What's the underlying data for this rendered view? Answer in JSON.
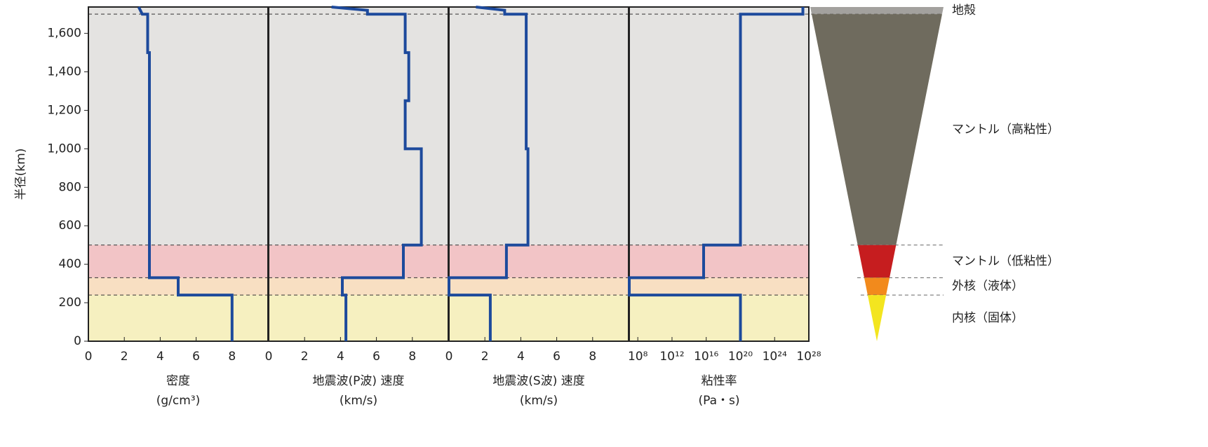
{
  "chart_data": [
    {
      "type": "line",
      "xlabel": [
        "密度",
        "(g/cm³)"
      ],
      "ylabel": "半径(km)",
      "xlim": [
        0,
        10
      ],
      "xticks": [
        0,
        2,
        4,
        6,
        8
      ],
      "ylim": [
        0,
        1737
      ],
      "yticks": [
        0,
        200,
        400,
        600,
        800,
        {
          "value": 1000,
          "label": "1,000"
        },
        {
          "value": 1200,
          "label": "1,200"
        },
        {
          "value": 1400,
          "label": "1,400"
        },
        {
          "value": 1600,
          "label": "1,600"
        }
      ],
      "series": [
        {
          "color": "#1d4a9c",
          "x": [
            2.8,
            3.0,
            3.3,
            3.3,
            3.4,
            3.4,
            5.0,
            5.0,
            8.0,
            8.0
          ],
          "y": [
            1737,
            1700,
            1700,
            1500,
            1500,
            330,
            330,
            240,
            240,
            0
          ]
        }
      ]
    },
    {
      "type": "line",
      "xlabel": [
        "地震波(P波) 速度",
        "(km/s)"
      ],
      "xlim": [
        0,
        10
      ],
      "xticks": [
        0,
        2,
        4,
        6,
        8
      ],
      "ylim": [
        0,
        1737
      ],
      "series": [
        {
          "color": "#1d4a9c",
          "x": [
            3.5,
            5.5,
            5.5,
            7.6,
            7.6,
            7.8,
            7.8,
            7.6,
            7.6,
            8.5,
            8.5,
            7.5,
            7.5,
            4.1,
            4.1,
            4.3,
            4.3
          ],
          "y": [
            1737,
            1720,
            1700,
            1700,
            1500,
            1500,
            1250,
            1250,
            1000,
            1000,
            500,
            500,
            330,
            330,
            240,
            240,
            0
          ]
        }
      ]
    },
    {
      "type": "line",
      "xlabel": [
        "地震波(S波) 速度",
        "(km/s)"
      ],
      "xlim": [
        0,
        10
      ],
      "xticks": [
        0,
        2,
        4,
        6,
        8
      ],
      "ylim": [
        0,
        1737
      ],
      "series": [
        {
          "color": "#1d4a9c",
          "x": [
            1.5,
            3.1,
            3.1,
            4.3,
            4.3,
            4.4,
            4.4,
            3.2,
            3.2,
            0,
            0,
            2.3,
            2.3
          ],
          "y": [
            1737,
            1720,
            1700,
            1700,
            1000,
            1000,
            500,
            500,
            330,
            330,
            240,
            240,
            0
          ]
        }
      ]
    },
    {
      "type": "line",
      "xlabel": [
        "粘性率",
        "(Pa・s)"
      ],
      "log_x": true,
      "xlim": [
        10000000.0,
        1e+28
      ],
      "xticks": [
        {
          "value": 100000000.0,
          "label": "10⁸"
        },
        {
          "value": 1000000000000.0,
          "label": "10¹²"
        },
        {
          "value": 1e+16,
          "label": "10¹⁶"
        },
        {
          "value": 1e+20,
          "label": "10²⁰"
        },
        {
          "value": 1e+24,
          "label": "10²⁴"
        },
        {
          "value": 1e+28,
          "label": "10²⁸"
        }
      ],
      "ylim": [
        0,
        1737
      ],
      "series": [
        {
          "color": "#1d4a9c",
          "x": [
            2e+27,
            2e+27,
            1e+20,
            1e+20,
            5000000000000000.0,
            5000000000000000.0,
            10000000.0,
            10000000.0,
            1e+20,
            1e+20
          ],
          "y": [
            1737,
            1700,
            1700,
            500,
            500,
            330,
            330,
            240,
            240,
            0
          ]
        }
      ]
    }
  ],
  "layers": [
    {
      "label": "地殻",
      "bottom": 1700,
      "color": "#a3a19e",
      "bg": "#e4e3e1"
    },
    {
      "label": "マントル（高粘性）",
      "bottom": 500,
      "color": "#6f6b5e",
      "bg": "#e4e3e1"
    },
    {
      "label": "マントル（低粘性）",
      "bottom": 330,
      "color": "#c61d1f",
      "bg": "#f2c4c6"
    },
    {
      "label": "外核（液体）",
      "bottom": 240,
      "color": "#f28a1c",
      "bg": "#f8dfc2"
    },
    {
      "label": "内核（固体）",
      "bottom": 0,
      "color": "#f3e51f",
      "bg": "#f6f0c0"
    }
  ]
}
